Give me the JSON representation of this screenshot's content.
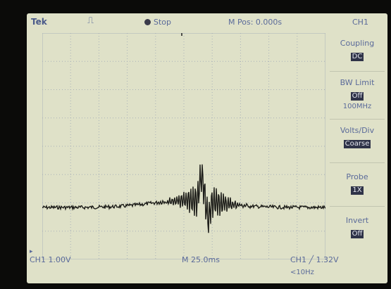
{
  "header": {
    "brand": "Tek",
    "trigger_symbol": "⎍",
    "run_state": "Stop",
    "m_pos": "M Pos: 0.000s",
    "channel": "CH1"
  },
  "menu": [
    {
      "label": "Coupling",
      "value": "DC",
      "extra": ""
    },
    {
      "label": "BW Limit",
      "value": "Off",
      "extra": "100MHz"
    },
    {
      "label": "Volts/Div",
      "value": "Coarse",
      "extra": ""
    },
    {
      "label": "Probe",
      "value": "1X",
      "extra": ""
    },
    {
      "label": "Invert",
      "value": "Off",
      "extra": ""
    }
  ],
  "footer": {
    "ch_scale": "CH1 1.00V",
    "timebase": "M 25.0ms",
    "trigger": "CH1 ╱ 1.32V",
    "freq": "<10Hz"
  },
  "colors": {
    "screen": "#dfe1c8",
    "grid": "#a9b1b8",
    "trace": "#1e1e1a",
    "text": "#5a6a9a"
  }
}
